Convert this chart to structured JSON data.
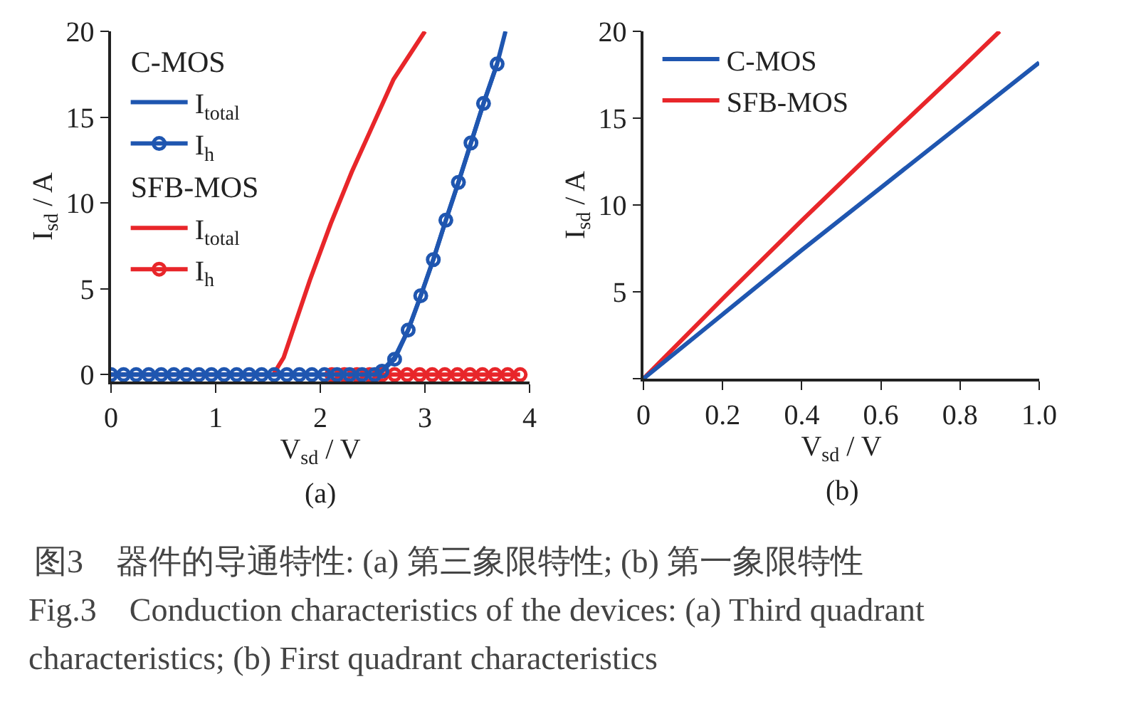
{
  "chart_data": [
    {
      "type": "line",
      "xlabel": "V$_{sd}$ / V",
      "ylabel": "I$_{sd}$ / A",
      "annotations": [
        "(a)",
        "C-MOS",
        "SFB-MOS"
      ],
      "xlim": [
        0,
        4
      ],
      "ylim": [
        -0.4,
        20
      ],
      "xticks": [
        0,
        1,
        2,
        3,
        4
      ],
      "yticks": [
        0,
        5,
        10,
        15,
        20
      ],
      "grid": false,
      "legend": "top left",
      "series": [
        {
          "name": "I$_{total}$",
          "color": "#1f56b0",
          "x": [
            0,
            2.5,
            2.6,
            2.71,
            2.84,
            2.96,
            3.08,
            3.2,
            3.32,
            3.44,
            3.56,
            3.69,
            3.77
          ],
          "values": [
            0,
            0,
            0.3,
            1,
            2.6,
            4.6,
            6.7,
            9,
            11.2,
            13.5,
            15.8,
            18.1,
            20
          ]
        },
        {
          "name": "I$_{h}$",
          "color": "#1f56b0",
          "marker": "circle",
          "x": [
            0,
            0.12,
            0.24,
            0.36,
            0.48,
            0.6,
            0.72,
            0.84,
            0.96,
            1.08,
            1.2,
            1.32,
            1.44,
            1.56,
            1.68,
            1.8,
            1.92,
            2.04,
            2.16,
            2.28,
            2.4,
            2.52,
            2.59,
            2.71,
            2.84,
            2.96,
            3.08,
            3.2,
            3.32,
            3.44,
            3.56,
            3.69
          ],
          "values": [
            0,
            0,
            0,
            0,
            0,
            0,
            0,
            0,
            0,
            0,
            0,
            0,
            0,
            0,
            0,
            0,
            0,
            0,
            0,
            0,
            0,
            0,
            0.2,
            0.9,
            2.6,
            4.6,
            6.7,
            9,
            11.2,
            13.5,
            15.8,
            18.1
          ]
        },
        {
          "name": "I$_{total}$",
          "color": "#e8262a",
          "x": [
            0,
            1.55,
            1.65,
            1.75,
            1.9,
            2.1,
            2.3,
            2.5,
            2.7,
            3.0
          ],
          "values": [
            0,
            0,
            1,
            2.8,
            5.5,
            8.8,
            11.8,
            14.5,
            17.2,
            20
          ]
        },
        {
          "name": "I$_{h}$",
          "color": "#e8262a",
          "marker": "circle",
          "x": [
            2.11,
            2.23,
            2.35,
            2.47,
            2.59,
            2.71,
            2.83,
            2.95,
            3.07,
            3.19,
            3.31,
            3.43,
            3.55,
            3.67,
            3.79,
            3.91
          ],
          "values": [
            0,
            0,
            0,
            0,
            0,
            0,
            0,
            0,
            0,
            0,
            0,
            0,
            0,
            0,
            0,
            0
          ]
        }
      ]
    },
    {
      "type": "line",
      "xlabel": "V$_{sd}$ / V",
      "ylabel": "I$_{sd}$ / A",
      "annotations": [
        "(b)"
      ],
      "xlim": [
        0,
        1
      ],
      "ylim": [
        0,
        20
      ],
      "xticks": [
        0,
        0.2,
        0.4,
        0.6,
        0.8,
        {
          "value": 1,
          "label": "1.0"
        }
      ],
      "yticks": [
        {
          "value": 0,
          "label": null
        },
        5,
        10,
        15,
        20
      ],
      "grid": false,
      "legend": "top left",
      "series": [
        {
          "name": "C-MOS",
          "color": "#1f56b0",
          "x": [
            0,
            0.2,
            0.4,
            0.6,
            0.8,
            1.0
          ],
          "values": [
            0,
            3.7,
            7.4,
            11.0,
            14.6,
            18.2
          ]
        },
        {
          "name": "SFB-MOS",
          "color": "#e8262a",
          "x": [
            0,
            0.2,
            0.4,
            0.6,
            0.8,
            0.9
          ],
          "values": [
            0,
            4.6,
            9.1,
            13.5,
            17.8,
            20
          ]
        }
      ]
    },
    {
      "type": "other",
      "annotations": [
        "图3　器件的导通特性: (a) 第三象限特性; (b) 第一象限特性",
        "Fig.3　Conduction characteristics of the devices: (a) Third quadrant characteristics; (b) First quadrant characteristics"
      ]
    }
  ]
}
